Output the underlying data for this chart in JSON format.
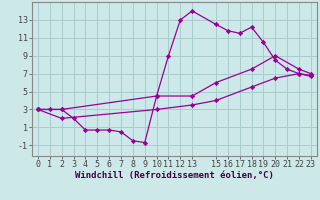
{
  "background_color": "#cce8e8",
  "grid_color": "#aacccc",
  "line_color": "#990099",
  "marker": "D",
  "markersize": 2.2,
  "linewidth": 0.9,
  "xlabel": "Windchill (Refroidissement éolien,°C)",
  "xlabel_fontsize": 6.5,
  "tick_fontsize": 6.0,
  "xlim": [
    -0.5,
    23.5
  ],
  "ylim": [
    -2.2,
    15.0
  ],
  "xticks": [
    0,
    1,
    2,
    3,
    4,
    5,
    6,
    7,
    8,
    9,
    10,
    11,
    12,
    13,
    15,
    16,
    17,
    18,
    19,
    20,
    21,
    22,
    23
  ],
  "xtick_labels": [
    "0",
    "1",
    "2",
    "3",
    "4",
    "5",
    "6",
    "7",
    "8",
    "9",
    "10",
    "11",
    "12",
    "13",
    "15",
    "16",
    "17",
    "18",
    "19",
    "20",
    "21",
    "22",
    "23"
  ],
  "yticks": [
    -1,
    1,
    3,
    5,
    7,
    9,
    11,
    13
  ],
  "line1_x": [
    0,
    1,
    2,
    3,
    4,
    5,
    6,
    7,
    8,
    9,
    10,
    11,
    12,
    13,
    15,
    16,
    17,
    18,
    19,
    20,
    21,
    22,
    23
  ],
  "line1_y": [
    3.0,
    3.0,
    3.0,
    2.0,
    0.7,
    0.7,
    0.7,
    0.5,
    -0.5,
    -0.7,
    4.5,
    9.0,
    13.0,
    14.0,
    12.5,
    11.8,
    11.5,
    12.2,
    10.5,
    8.5,
    7.5,
    7.0,
    6.7
  ],
  "line2_x": [
    0,
    2,
    10,
    13,
    15,
    18,
    20,
    22,
    23
  ],
  "line2_y": [
    3.0,
    3.0,
    4.5,
    4.5,
    6.0,
    7.5,
    9.0,
    7.5,
    7.0
  ],
  "line3_x": [
    0,
    2,
    10,
    13,
    15,
    18,
    20,
    22,
    23
  ],
  "line3_y": [
    3.0,
    2.0,
    3.0,
    3.5,
    4.0,
    5.5,
    6.5,
    7.0,
    6.8
  ]
}
